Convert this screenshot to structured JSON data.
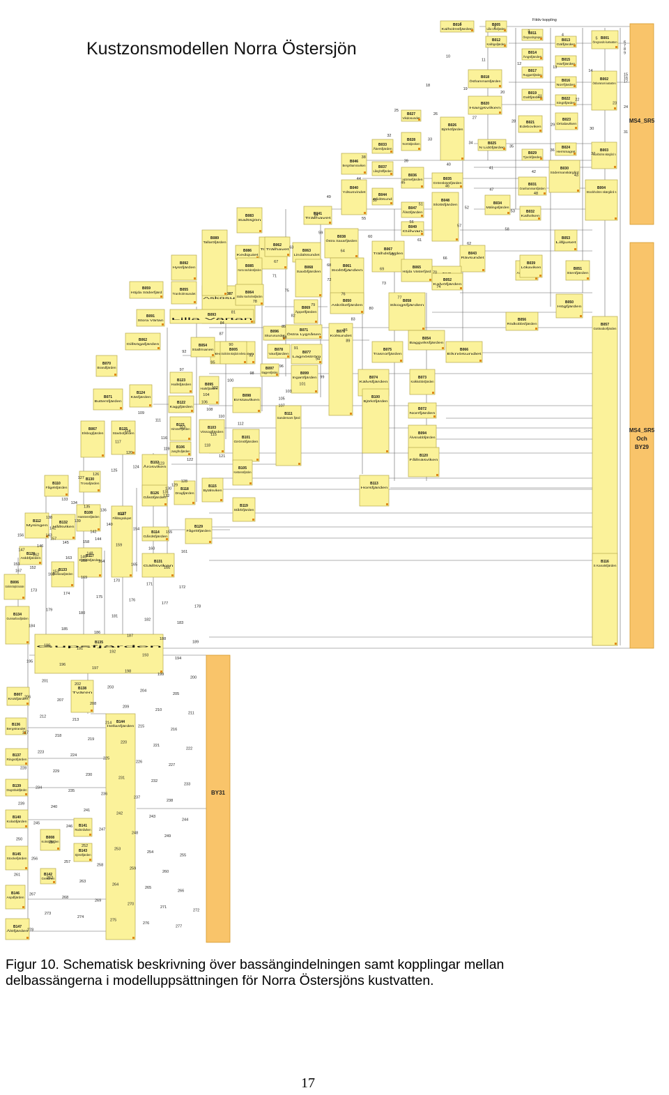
{
  "title": "Kustzonsmodellen Norra Östersjön",
  "caption": {
    "line1": "Figur 10. Schematisk beskrivning över bassängindelningen samt kopplingar mellan",
    "line2": "delbassängerna i modelluppsättningen för Norra Östersjöns kustvatten."
  },
  "page_number": "17",
  "legend": {
    "fiktiv_label": "Fiktiv koppling"
  },
  "colors": {
    "basin_fill": "#fbf29a",
    "external_fill": "#f9c46a",
    "dot": "#e08a1a",
    "line": "#666666"
  },
  "external_boundaries": [
    {
      "label": "MS4_SR5"
    },
    {
      "label": "MS4_SR5 Och BY29"
    },
    {
      "label": "BY31"
    }
  ],
  "basins": [
    {
      "code": "B016",
      "name": "Kalholmsfjärden"
    },
    {
      "code": "B005",
      "name": "Lilla Ulbofjärden"
    },
    {
      "code": "B011",
      "name": "Öregrundsgrepen"
    },
    {
      "code": "B001",
      "name": "Öregrunds kustvatten"
    },
    {
      "code": "B012",
      "name": "Kallrigafjärden"
    },
    {
      "code": "B013",
      "name": "Gälfjärden"
    },
    {
      "code": "B014",
      "name": "Ängsfjärden"
    },
    {
      "code": "B015",
      "name": "Harfjärden"
    },
    {
      "code": "B018",
      "name": "Östhammarsfjärden"
    },
    {
      "code": "B017",
      "name": "Ruggaröfjärden"
    },
    {
      "code": "B016",
      "name": "Norrfjärden"
    },
    {
      "code": "B002",
      "name": "Östhammars kustvatten"
    },
    {
      "code": "B020",
      "name": "Hargsviken"
    },
    {
      "code": "B019",
      "name": "Galtfjärden"
    },
    {
      "code": "B022",
      "name": "Singöfjärden"
    },
    {
      "code": "B027",
      "name": "Vikdosundet"
    },
    {
      "code": "B021",
      "name": "Edeboviken"
    },
    {
      "code": "B023",
      "name": "Ortalaviken"
    },
    {
      "code": "B028",
      "name": "Norrtäljeviken"
    },
    {
      "code": "B026",
      "name": "Björköfjärden"
    },
    {
      "code": "B025",
      "name": "N Lidöfjärden"
    },
    {
      "code": "B024",
      "name": "Herrsmagret"
    },
    {
      "code": "B003",
      "name": "Stockholms skärgård n"
    },
    {
      "code": "B029",
      "name": "Tjockfjärden"
    },
    {
      "code": "B033",
      "name": "Åkersfjärden"
    },
    {
      "code": "B046",
      "name": "Bergshamraviken"
    },
    {
      "code": "B037",
      "name": "Långhöffjärden"
    },
    {
      "code": "B036",
      "name": "Hörnefjärden"
    },
    {
      "code": "B031",
      "name": "Granhammarsfjärden"
    },
    {
      "code": "B030",
      "name": "Södermanskärgård"
    },
    {
      "code": "B004",
      "name": "Stockholms skärgård s"
    },
    {
      "code": "B040",
      "name": "Ydsusvindet"
    },
    {
      "code": "B035",
      "name": "Grönskärsfjärden"
    },
    {
      "code": "B044",
      "name": "Blidösund"
    },
    {
      "code": "B047",
      "name": "Ålsöfjärden"
    },
    {
      "code": "B034",
      "name": "Mälingsfjärden"
    },
    {
      "code": "B032",
      "name": "Kallviken"
    },
    {
      "code": "B048",
      "name": "Slottsfjärden"
    },
    {
      "code": "B043",
      "name": "Rävsundet"
    },
    {
      "code": "B049",
      "name": "Gilvan"
    },
    {
      "code": "B041",
      "name": "Trälhavet"
    },
    {
      "code": "B045",
      "name": "Kalvöfjärden"
    },
    {
      "code": "B053",
      "name": "Lilljuset"
    },
    {
      "code": "B042",
      "name": "Askösfjärden"
    },
    {
      "code": "B038",
      "name": "Östra Saxarfjärden"
    },
    {
      "code": "B067",
      "name": "Trälhdsfjärden"
    },
    {
      "code": "B065",
      "name": "Höjda Västerfjärd"
    },
    {
      "code": "B052",
      "name": "Kalvöfjärden"
    },
    {
      "code": "B039",
      "name": "Lökaviken"
    },
    {
      "code": "B051",
      "name": "Stenfjärden"
    },
    {
      "code": "B050",
      "name": "Högfjärden"
    },
    {
      "code": "B083",
      "name": "Saltsjön"
    },
    {
      "code": "B087",
      "name": "Askösundet"
    },
    {
      "code": "B082",
      "name": "Torpfjärden"
    },
    {
      "code": "B092",
      "name": "Hyssfjärden"
    },
    {
      "code": "B089",
      "name": "Tallaröfjärden"
    },
    {
      "code": "B086",
      "name": "Kedquiet"
    },
    {
      "code": "B062",
      "name": "Trälhavet"
    },
    {
      "code": "B063",
      "name": "Lindalssundet"
    },
    {
      "code": "B085",
      "name": "Norra Vaxholmsfjärden"
    },
    {
      "code": "B064",
      "name": "Södra Vaxholmsfjärden"
    },
    {
      "code": "B068",
      "name": "Saxbfjärden"
    },
    {
      "code": "B061",
      "name": "Solöfjärden"
    },
    {
      "code": "B058",
      "name": "Skogsfjärden"
    },
    {
      "code": "B059",
      "name": "Höjda Söderfjärd"
    },
    {
      "code": "B055",
      "name": "Tranholmsundet"
    },
    {
      "code": "B091",
      "name": "Stora Värtan"
    },
    {
      "code": "B093",
      "name": "Lilla Värtan"
    },
    {
      "code": "B050",
      "name": "Askrikefjärden"
    },
    {
      "code": "B069",
      "name": "Äppelfjärden"
    },
    {
      "code": "B060",
      "name": "Tenboffjärden"
    },
    {
      "code": "B054",
      "name": "Baggviksfjärden"
    },
    {
      "code": "B056",
      "name": "Rödkobbsfjärden"
    },
    {
      "code": "B062",
      "name": "Gillsögafjärden"
    },
    {
      "code": "B054",
      "name": "Stallmanen"
    },
    {
      "code": "B096",
      "name": "Skurusundet"
    },
    {
      "code": "B071",
      "name": "Östra Lygnåsen"
    },
    {
      "code": "B078",
      "name": "Vaxfjärden"
    },
    {
      "code": "B077",
      "name": "Lagnöström"
    },
    {
      "code": "B075",
      "name": "Trasnorfjärden"
    },
    {
      "code": "B066",
      "name": "Eknösundet"
    },
    {
      "code": "B057",
      "name": "Gottnaborfjärden"
    },
    {
      "code": "B005",
      "name": "Stockholms skärgårds mellersta"
    },
    {
      "code": "B097",
      "name": "Baggensfjärden"
    },
    {
      "code": "B076",
      "name": "Kolsundet"
    },
    {
      "code": "B074",
      "name": "Kälvsfjärden"
    },
    {
      "code": "B073",
      "name": "Kalkkobbsfjärden"
    },
    {
      "code": "B070",
      "name": "Brandfjärden"
    },
    {
      "code": "B123",
      "name": "Hallsfjärden"
    },
    {
      "code": "B095",
      "name": "Halsfjärden"
    },
    {
      "code": "B098",
      "name": "Erstaviken"
    },
    {
      "code": "B099",
      "name": "Ingaröfjärden"
    },
    {
      "code": "B100",
      "name": "Björköfjärden"
    },
    {
      "code": "B072",
      "name": "Norrfjärden"
    },
    {
      "code": "B071",
      "name": "Buttersfjärden"
    },
    {
      "code": "B124",
      "name": "Käsfjärden"
    },
    {
      "code": "B122",
      "name": "Kaggfjärden"
    },
    {
      "code": "B094",
      "name": "Älvsnabbfjärden"
    },
    {
      "code": "B067",
      "name": "Elsbogfjärden"
    },
    {
      "code": "B125",
      "name": "Stavbofjärden"
    },
    {
      "code": "B121",
      "name": "Himmerfjärden"
    },
    {
      "code": "B103",
      "name": "Vissogfjärden"
    },
    {
      "code": "B101",
      "name": "Grönöfjärden"
    },
    {
      "code": "B111",
      "name": "Sandemars fjärd"
    },
    {
      "code": "B106",
      "name": "Jungfrufjärden"
    },
    {
      "code": "B102",
      "name": "Årosviken"
    },
    {
      "code": "B120",
      "name": "Fållnäsviken"
    },
    {
      "code": "B105",
      "name": "Kerstenssfjärden"
    },
    {
      "code": "B110",
      "name": "Fågelsfjärden"
    },
    {
      "code": "B130",
      "name": "Trosafjärden"
    },
    {
      "code": "B126",
      "name": "Gåsöfjärden"
    },
    {
      "code": "B118",
      "name": "Dragfjärden"
    },
    {
      "code": "B115",
      "name": "Bytälsviken"
    },
    {
      "code": "B113",
      "name": "Horsfjärden"
    },
    {
      "code": "B108",
      "name": "Hanstensfjärden"
    },
    {
      "code": "B127",
      "name": "Fållängsdupet"
    },
    {
      "code": "B119",
      "name": "Stårbfjärden"
    },
    {
      "code": "B112",
      "name": "Mysingen"
    },
    {
      "code": "B132",
      "name": "Hållsviken"
    },
    {
      "code": "B129",
      "name": "Fågelöfjärden"
    },
    {
      "code": "B114",
      "name": "Gårdsfjärden"
    },
    {
      "code": "B117",
      "name": "Kanalsfjärden"
    },
    {
      "code": "B128",
      "name": "Askbfjärden"
    },
    {
      "code": "B133",
      "name": "Sketanafjärden"
    },
    {
      "code": "B131",
      "name": "Gällsviken"
    },
    {
      "code": "B116",
      "name": "S Kanalsfjärden"
    },
    {
      "code": "B006",
      "name": "Stockholms Skärgårds kustvatten"
    },
    {
      "code": "B134",
      "name": "Gunnarboofjärden"
    },
    {
      "code": "B135",
      "name": "Gupsfjärden"
    },
    {
      "code": "B007",
      "name": "Krokfjärden"
    },
    {
      "code": "B138",
      "name": "Tvären"
    },
    {
      "code": "B136",
      "name": "Bergstrandet"
    },
    {
      "code": "B137",
      "name": "Ringsöfjärden"
    },
    {
      "code": "B139",
      "name": "Dragsöbuktfjärden"
    },
    {
      "code": "B140",
      "name": "Kolaöfjärden"
    },
    {
      "code": "B141",
      "name": "Rodsmåviken"
    },
    {
      "code": "B144",
      "name": "Hellanfjärden"
    },
    {
      "code": "B008",
      "name": "Kolsröfjärden"
    },
    {
      "code": "B143",
      "name": "Sjösöfjärden"
    },
    {
      "code": "B145",
      "name": "Stockefjärden"
    },
    {
      "code": "B142",
      "name": "Grebanen"
    },
    {
      "code": "B146",
      "name": "Aspdfjärden"
    },
    {
      "code": "B147",
      "name": "Älöfjärden"
    },
    {
      "code": "B148",
      "name": "Furdesundet"
    }
  ],
  "connection_numbers": [
    "1",
    "2",
    "3",
    "4",
    "5",
    "6",
    "7",
    "8",
    "9",
    "10",
    "11",
    "12",
    "13",
    "14",
    "15",
    "16",
    "17",
    "18",
    "19",
    "20",
    "21",
    "22",
    "23",
    "24",
    "25",
    "26",
    "27",
    "28",
    "29",
    "30",
    "31",
    "32",
    "33",
    "34",
    "35",
    "36",
    "37",
    "38",
    "39",
    "40",
    "41",
    "42",
    "43",
    "44",
    "45",
    "46",
    "47",
    "48",
    "49",
    "50",
    "51",
    "52",
    "53",
    "54",
    "55",
    "56",
    "57",
    "58",
    "59",
    "60",
    "61",
    "62",
    "63",
    "64",
    "65",
    "66",
    "67",
    "68",
    "69",
    "70",
    "71",
    "72",
    "73",
    "74",
    "75",
    "76",
    "77",
    "78",
    "79",
    "80",
    "81",
    "82",
    "83",
    "84",
    "85",
    "86",
    "87",
    "88",
    "89",
    "90",
    "91",
    "92",
    "93",
    "94",
    "95",
    "96",
    "97",
    "98",
    "99",
    "100",
    "101",
    "102",
    "103",
    "104",
    "105",
    "106",
    "107",
    "108",
    "109",
    "110",
    "111",
    "112",
    "113",
    "114",
    "115",
    "116",
    "117",
    "118",
    "119",
    "120",
    "121",
    "122",
    "123",
    "124",
    "125",
    "126",
    "127",
    "128",
    "129",
    "130",
    "131",
    "132",
    "133",
    "134",
    "135",
    "136",
    "137",
    "138",
    "139",
    "140",
    "141",
    "142",
    "143",
    "144",
    "145",
    "146",
    "147",
    "148",
    "149",
    "150",
    "151",
    "152",
    "153",
    "154",
    "155",
    "156",
    "157",
    "158",
    "159",
    "160",
    "161",
    "162",
    "163",
    "164",
    "165",
    "166",
    "167",
    "168",
    "169",
    "170",
    "171",
    "172",
    "173",
    "174",
    "175",
    "176",
    "177",
    "178",
    "179",
    "180",
    "181",
    "182",
    "183",
    "184",
    "185",
    "186",
    "187",
    "188",
    "189",
    "190",
    "191",
    "192",
    "193",
    "194",
    "195",
    "196",
    "197",
    "198",
    "199",
    "200",
    "201",
    "202",
    "203",
    "204",
    "205",
    "206",
    "207",
    "208",
    "209",
    "210",
    "211",
    "212",
    "213",
    "214",
    "215",
    "216",
    "217",
    "218",
    "219",
    "220",
    "221",
    "222",
    "223",
    "224",
    "225",
    "226",
    "227",
    "228",
    "229",
    "230",
    "231",
    "232",
    "233",
    "234",
    "235",
    "236",
    "237",
    "238",
    "239",
    "240",
    "241",
    "242",
    "243",
    "244",
    "245",
    "246",
    "247",
    "248",
    "249",
    "250",
    "251",
    "252",
    "253",
    "254",
    "255",
    "256",
    "257",
    "258",
    "259",
    "260",
    "261",
    "262",
    "263",
    "264",
    "265",
    "266",
    "267",
    "268",
    "269",
    "270",
    "271",
    "272",
    "273",
    "274",
    "275",
    "276",
    "277",
    "278"
  ]
}
